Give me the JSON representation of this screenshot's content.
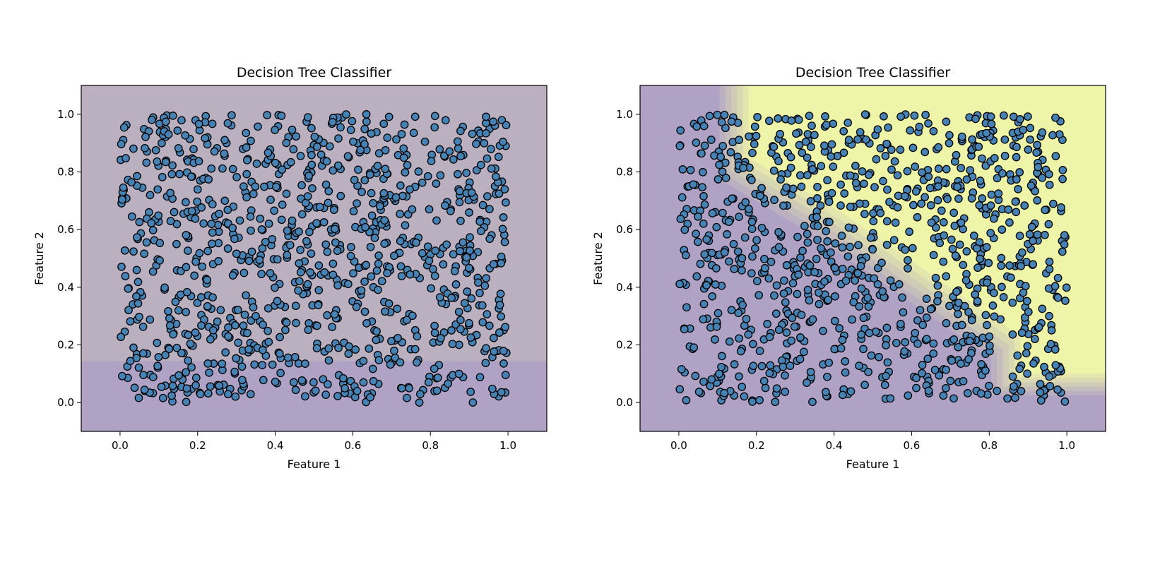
{
  "chart_data": [
    {
      "type": "scatter",
      "title": "Decision Tree Classifier",
      "xlabel": "Feature 1",
      "ylabel": "Feature 2",
      "xlim": [
        -0.1,
        1.1
      ],
      "ylim": [
        -0.1,
        1.1
      ],
      "xticks": [
        0.0,
        0.2,
        0.4,
        0.6,
        0.8,
        1.0
      ],
      "yticks": [
        0.0,
        0.2,
        0.4,
        0.6,
        0.8,
        1.0
      ],
      "xtick_labels": [
        "0.0",
        "0.2",
        "0.4",
        "0.6",
        "0.8",
        "1.0"
      ],
      "ytick_labels": [
        "0.0",
        "0.2",
        "0.4",
        "0.6",
        "0.8",
        "1.0"
      ],
      "grid": false,
      "legend": "none",
      "point_color": "#4682b4",
      "point_edge_color": "#000000",
      "region_colors": {
        "class_0": "#b0a2c4",
        "class_1": "#eef4a8"
      },
      "decision_boundary": {
        "rule": "class 1 if Feature 2 > 0.17"
      },
      "points": {
        "count": 1000,
        "x_range": [
          0,
          1
        ],
        "y_range": [
          0,
          1
        ],
        "distribution": "uniform"
      }
    },
    {
      "type": "scatter",
      "title": "Decision Tree Classifier",
      "xlabel": "Feature 1",
      "ylabel": "Feature 2",
      "xlim": [
        -0.1,
        1.1
      ],
      "ylim": [
        -0.1,
        1.1
      ],
      "xticks": [
        0.0,
        0.2,
        0.4,
        0.6,
        0.8,
        1.0
      ],
      "yticks": [
        0.0,
        0.2,
        0.4,
        0.6,
        0.8,
        1.0
      ],
      "xtick_labels": [
        "0.0",
        "0.2",
        "0.4",
        "0.6",
        "0.8",
        "1.0"
      ],
      "ytick_labels": [
        "0.0",
        "0.2",
        "0.4",
        "0.6",
        "0.8",
        "1.0"
      ],
      "grid": false,
      "legend": "none",
      "point_color": "#4682b4",
      "point_edge_color": "#000000",
      "region_colors": {
        "class_0": "#b0a2c4",
        "class_1": "#eef4a8"
      },
      "decision_boundary": {
        "rule": "class 1 where the staircase region lies above the anti-diagonal",
        "vertices": [
          [
            0.15,
            1.1
          ],
          [
            0.15,
            0.82
          ],
          [
            0.4,
            0.62
          ],
          [
            0.4,
            0.62
          ],
          [
            0.85,
            0.2
          ],
          [
            0.85,
            0.07
          ],
          [
            1.1,
            0.07
          ],
          [
            1.1,
            1.1
          ]
        ]
      },
      "points": {
        "count": 1000,
        "x_range": [
          0,
          1
        ],
        "y_range": [
          0,
          1
        ],
        "distribution": "uniform"
      }
    }
  ]
}
